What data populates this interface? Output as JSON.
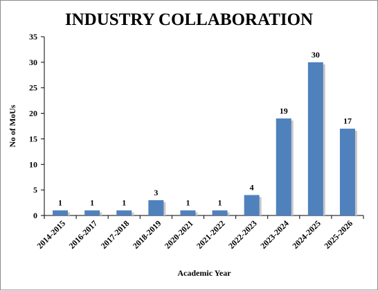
{
  "chart_data": {
    "type": "bar",
    "title": "INDUSTRY COLLABORATION",
    "xlabel": "Academic Year",
    "ylabel": "No of MoUs",
    "categories": [
      "2014-2015",
      "2016-2017",
      "2017-2018",
      "2018-2019",
      "2020-2021",
      "2021-2022",
      "2022-2023",
      "2023-2024",
      "2024-2025",
      "2025-2026"
    ],
    "values": [
      1,
      1,
      1,
      3,
      1,
      1,
      4,
      19,
      30,
      17
    ],
    "ylim": [
      0,
      35
    ],
    "yticks": [
      0,
      5,
      10,
      15,
      20,
      25,
      30,
      35
    ],
    "grid": false,
    "legend": "none",
    "bar_color": "#4f81bd",
    "shadow_color": "#c8c8c8"
  }
}
